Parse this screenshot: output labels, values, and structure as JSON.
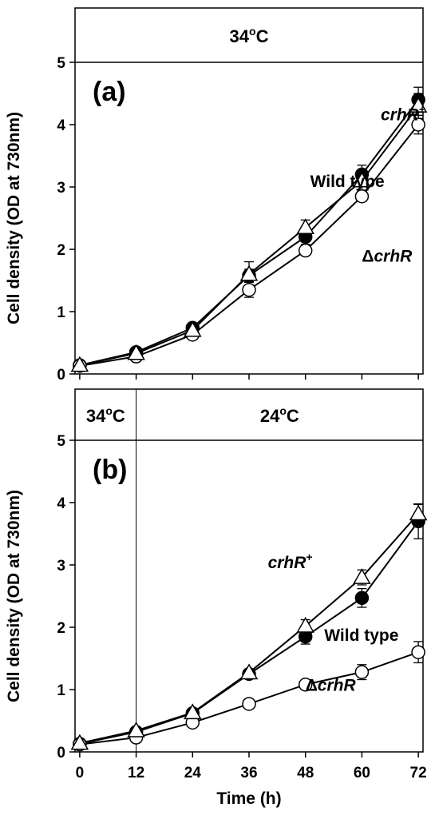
{
  "chart_data": [
    {
      "type": "line",
      "panel_label": "(a)",
      "ylabel": "Cell density (OD at 730nm)",
      "xlabel": "",
      "ylim": [
        0,
        5
      ],
      "yticks": [
        0,
        1,
        2,
        3,
        4,
        5
      ],
      "xlim": [
        -1,
        73
      ],
      "xticks": [
        0,
        12,
        24,
        36,
        48,
        60,
        72
      ],
      "show_x_tick_labels": false,
      "temp_bands": [
        {
          "label": "34oC",
          "base": "34",
          "sup": "o",
          "unit": "C",
          "x_from": -1,
          "x_to": 73
        }
      ],
      "series": [
        {
          "name": "crhR+",
          "marker": "filled-circle",
          "x": [
            0,
            12,
            24,
            36,
            48,
            60,
            72
          ],
          "y": [
            0.14,
            0.35,
            0.74,
            1.58,
            2.2,
            3.2,
            4.4
          ],
          "err": [
            0.03,
            0.04,
            0.05,
            0.1,
            0.12,
            0.15,
            0.2
          ]
        },
        {
          "name": "Wild type",
          "marker": "open-triangle",
          "x": [
            0,
            12,
            24,
            36,
            48,
            60,
            72
          ],
          "y": [
            0.14,
            0.33,
            0.7,
            1.6,
            2.35,
            3.1,
            4.3
          ],
          "err": [
            0.03,
            0.04,
            0.05,
            0.2,
            0.12,
            0.15,
            0.2
          ]
        },
        {
          "name": "ΔcrhR",
          "marker": "open-circle",
          "x": [
            0,
            12,
            24,
            36,
            48,
            60,
            72
          ],
          "y": [
            0.13,
            0.28,
            0.63,
            1.35,
            1.98,
            2.85,
            4.0
          ],
          "err": [
            0.03,
            0.04,
            0.05,
            0.12,
            0.06,
            0.08,
            0.15
          ]
        }
      ],
      "labels": [
        {
          "series": "crhR+",
          "base": "crhR",
          "sup": "+",
          "italic": true,
          "x": 64,
          "y": 4.07,
          "sub_offset": 0
        },
        {
          "series": "Wild type",
          "base": "Wild type",
          "sup": "",
          "italic": false,
          "x": 49,
          "y": 3.0,
          "sub_offset": 0
        },
        {
          "series": "ΔcrhR",
          "base": "crhR",
          "prefix": "Δ",
          "sup": "",
          "italic": true,
          "x": 60,
          "y": 1.8,
          "sub_offset": 0
        }
      ]
    },
    {
      "type": "line",
      "panel_label": "(b)",
      "ylabel": "Cell density (OD at 730nm)",
      "xlabel": "Time (h)",
      "ylim": [
        0,
        5
      ],
      "yticks": [
        0,
        1,
        2,
        3,
        4,
        5
      ],
      "xlim": [
        -1,
        73
      ],
      "xticks": [
        0,
        12,
        24,
        36,
        48,
        60,
        72
      ],
      "show_x_tick_labels": true,
      "temp_bands": [
        {
          "label": "34oC",
          "base": "34",
          "sup": "o",
          "unit": "C",
          "x_from": -1,
          "x_to": 12
        },
        {
          "label": "24oC",
          "base": "24",
          "sup": "o",
          "unit": "C",
          "x_from": 12,
          "x_to": 73
        }
      ],
      "divider_x": 12,
      "series": [
        {
          "name": "crhR+",
          "marker": "open-triangle",
          "x": [
            0,
            12,
            24,
            36,
            48,
            60,
            72
          ],
          "y": [
            0.14,
            0.34,
            0.63,
            1.27,
            2.02,
            2.8,
            3.82
          ],
          "err": [
            0.03,
            0.04,
            0.05,
            0.05,
            0.1,
            0.12,
            0.15
          ]
        },
        {
          "name": "Wild type",
          "marker": "filled-circle",
          "x": [
            0,
            12,
            24,
            36,
            48,
            60,
            72
          ],
          "y": [
            0.13,
            0.32,
            0.62,
            1.25,
            1.85,
            2.47,
            3.7
          ],
          "err": [
            0.03,
            0.04,
            0.05,
            0.05,
            0.12,
            0.15,
            0.28
          ]
        },
        {
          "name": "ΔcrhR",
          "marker": "open-circle",
          "x": [
            0,
            12,
            24,
            36,
            48,
            60,
            72
          ],
          "y": [
            0.12,
            0.23,
            0.47,
            0.77,
            1.08,
            1.28,
            1.6
          ],
          "err": [
            0.02,
            0.03,
            0.04,
            0.05,
            0.05,
            0.12,
            0.17
          ]
        }
      ],
      "labels": [
        {
          "series": "crhR+",
          "base": "crhR",
          "sup": "+",
          "italic": true,
          "x": 40,
          "y": 2.95,
          "sub_offset": 0
        },
        {
          "series": "Wild type",
          "base": "Wild type",
          "sup": "",
          "italic": false,
          "x": 52,
          "y": 1.78,
          "sub_offset": 0
        },
        {
          "series": "ΔcrhR",
          "base": "crhR",
          "prefix": "Δ",
          "sup": "",
          "italic": true,
          "x": 48,
          "y": 0.98,
          "sub_offset": 0
        }
      ]
    }
  ]
}
